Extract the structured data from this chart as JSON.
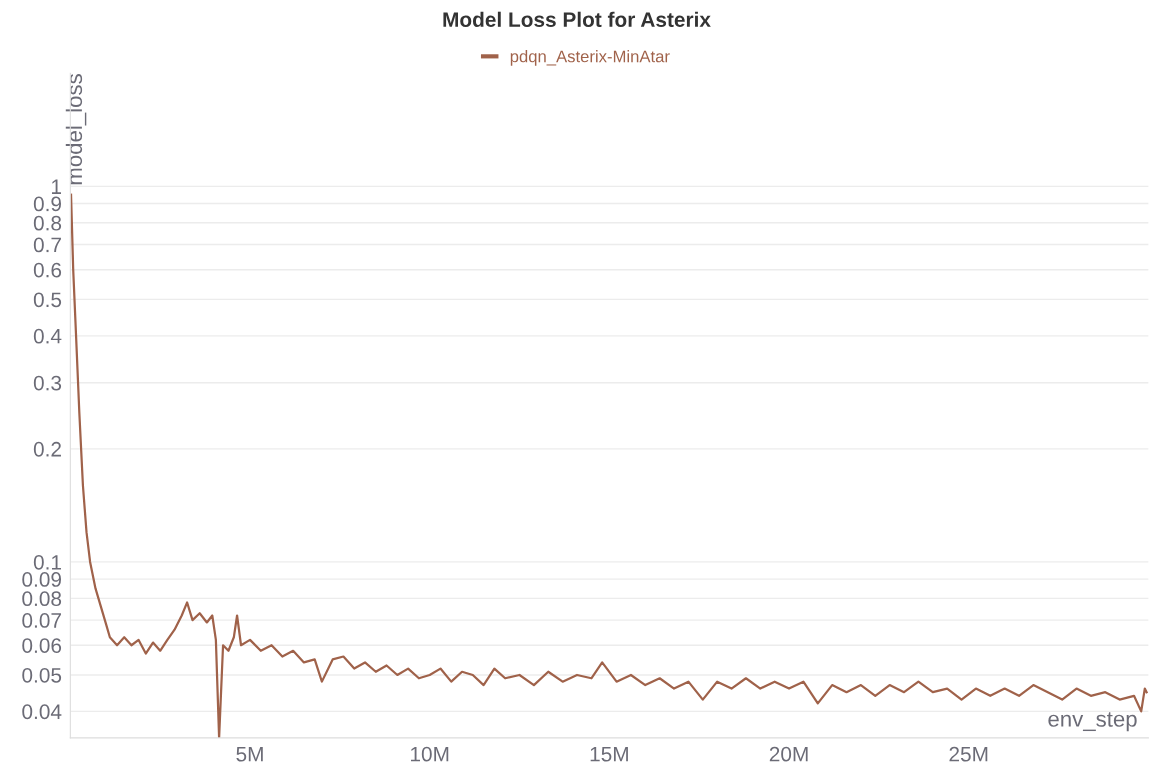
{
  "chart_data": {
    "type": "line",
    "title": "Model Loss Plot for Asterix",
    "xlabel": "env_step",
    "ylabel": "model_loss",
    "log": "y",
    "grid": "y",
    "legend": "top",
    "marker": "none",
    "line_style": "solid",
    "xlim": [
      0,
      30000000.0
    ],
    "xticks": [
      {
        "value": 5000000.0,
        "label": "5M"
      },
      {
        "value": 10000000.0,
        "label": "10M"
      },
      {
        "value": 15000000.0,
        "label": "15M"
      },
      {
        "value": 20000000.0,
        "label": "20M"
      },
      {
        "value": 25000000.0,
        "label": "25M"
      }
    ],
    "ylim": [
      0.034,
      2
    ],
    "yticks": [
      0.04,
      0.05,
      0.06,
      0.07,
      0.08,
      0.09,
      0.1,
      0.2,
      0.3,
      0.4,
      0.5,
      0.6,
      0.7,
      0.8,
      0.9,
      1
    ],
    "series": [
      {
        "name": "pdqn_Asterix-MinAtar",
        "color": "#a0624a",
        "x": [
          20000.0,
          80000.0,
          150000.0,
          250000.0,
          350000.0,
          450000.0,
          550000.0,
          700000.0,
          850000.0,
          1000000.0,
          1100000.0,
          1300000.0,
          1500000.0,
          1700000.0,
          1900000.0,
          2100000.0,
          2300000.0,
          2500000.0,
          2700000.0,
          2900000.0,
          3100000.0,
          3250000.0,
          3400000.0,
          3600000.0,
          3800000.0,
          3950000.0,
          4050000.0,
          4140000.0,
          4250000.0,
          4400000.0,
          4550000.0,
          4640000.0,
          4750000.0,
          5000000.0,
          5300000.0,
          5600000.0,
          5900000.0,
          6200000.0,
          6500000.0,
          6800000.0,
          7000000.0,
          7300000.0,
          7600000.0,
          7900000.0,
          8200000.0,
          8500000.0,
          8800000.0,
          9100000.0,
          9400000.0,
          9700000.0,
          10000000.0,
          10300000.0,
          10600000.0,
          10900000.0,
          11200000.0,
          11500000.0,
          11800000.0,
          12100000.0,
          12500000.0,
          12900000.0,
          13300000.0,
          13700000.0,
          14100000.0,
          14500000.0,
          14800000.0,
          15200000.0,
          15600000.0,
          16000000.0,
          16400000.0,
          16800000.0,
          17200000.0,
          17600000.0,
          18000000.0,
          18400000.0,
          18800000.0,
          19200000.0,
          19600000.0,
          20000000.0,
          20400000.0,
          20800000.0,
          21200000.0,
          21600000.0,
          22000000.0,
          22400000.0,
          22800000.0,
          23200000.0,
          23600000.0,
          24000000.0,
          24400000.0,
          24800000.0,
          25200000.0,
          25600000.0,
          26000000.0,
          26400000.0,
          26800000.0,
          27200000.0,
          27600000.0,
          28000000.0,
          28400000.0,
          28800000.0,
          29200000.0,
          29600000.0,
          29800000.0,
          29900000.0,
          29950000.0
        ],
        "values": [
          0.95,
          0.6,
          0.42,
          0.25,
          0.16,
          0.12,
          0.1,
          0.085,
          0.076,
          0.068,
          0.063,
          0.06,
          0.063,
          0.06,
          0.062,
          0.057,
          0.061,
          0.058,
          0.062,
          0.066,
          0.072,
          0.078,
          0.07,
          0.073,
          0.069,
          0.072,
          0.062,
          0.034,
          0.06,
          0.058,
          0.063,
          0.072,
          0.06,
          0.062,
          0.058,
          0.06,
          0.056,
          0.058,
          0.054,
          0.055,
          0.048,
          0.055,
          0.056,
          0.052,
          0.054,
          0.051,
          0.053,
          0.05,
          0.052,
          0.049,
          0.05,
          0.052,
          0.048,
          0.051,
          0.05,
          0.047,
          0.052,
          0.049,
          0.05,
          0.047,
          0.051,
          0.048,
          0.05,
          0.049,
          0.054,
          0.048,
          0.05,
          0.047,
          0.049,
          0.046,
          0.048,
          0.043,
          0.048,
          0.046,
          0.049,
          0.046,
          0.048,
          0.046,
          0.048,
          0.042,
          0.047,
          0.045,
          0.047,
          0.044,
          0.047,
          0.045,
          0.048,
          0.045,
          0.046,
          0.043,
          0.046,
          0.044,
          0.046,
          0.044,
          0.047,
          0.045,
          0.043,
          0.046,
          0.044,
          0.045,
          0.043,
          0.044,
          0.04,
          0.046,
          0.045
        ]
      }
    ]
  }
}
